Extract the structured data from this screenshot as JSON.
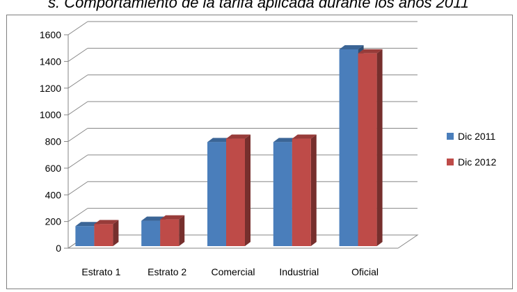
{
  "caption": "s. Comportamiento de la tarifa aplicada durante los años 2011",
  "chart_data": {
    "type": "bar",
    "categories": [
      "Estrato 1",
      "Estrato 2",
      "Comercial",
      "Industrial",
      "Oficial"
    ],
    "series": [
      {
        "name": "Dic 2011",
        "values": [
          150,
          190,
          780,
          780,
          1475
        ],
        "color": "#4a7ebb"
      },
      {
        "name": "Dic 2012",
        "values": [
          165,
          200,
          805,
          805,
          1445
        ],
        "color": "#be4b48"
      }
    ],
    "ylim": [
      0,
      1600
    ],
    "yticks": [
      "0",
      "200",
      "400",
      "600",
      "800",
      "1000",
      "1200",
      "1400",
      "1600"
    ],
    "grid": true,
    "legend": "right",
    "three_d": true
  }
}
